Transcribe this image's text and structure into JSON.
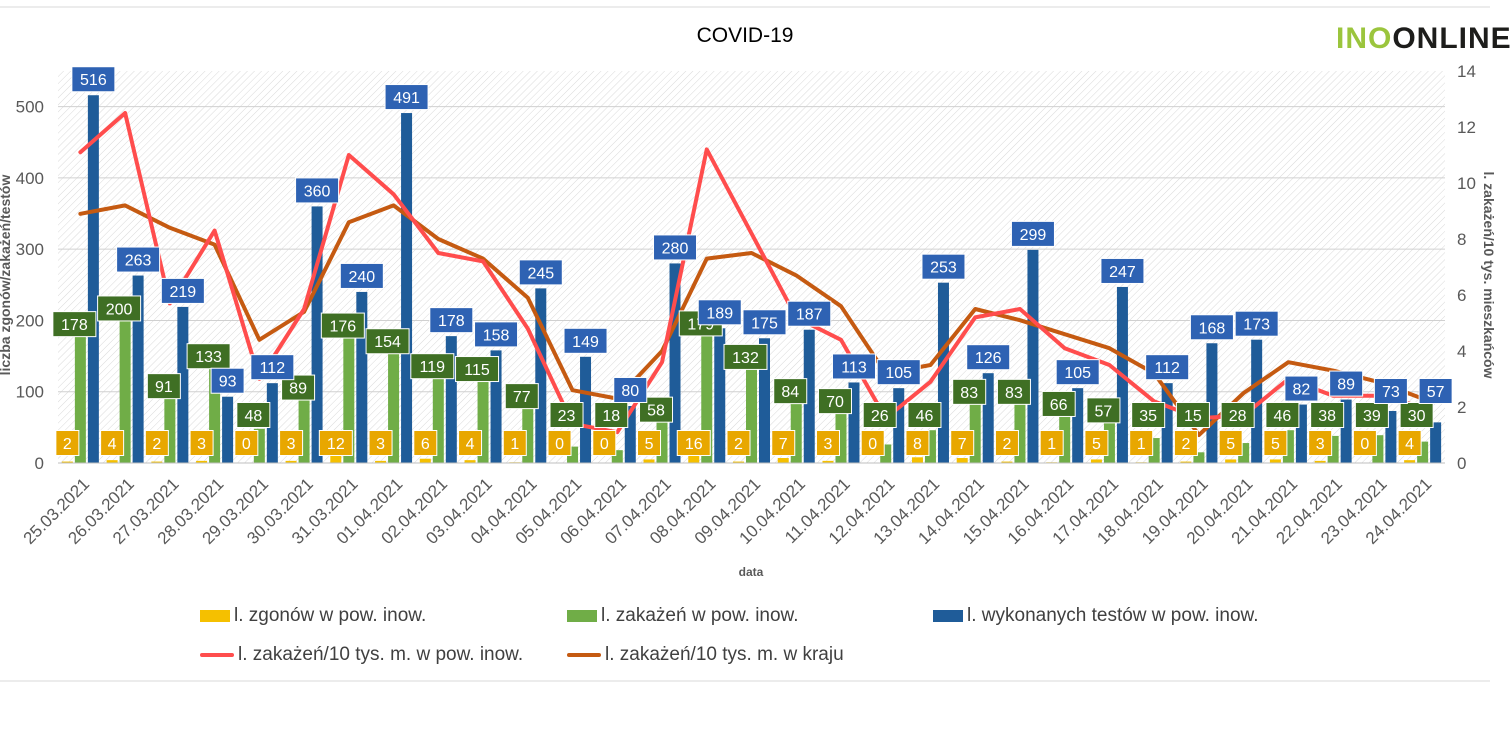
{
  "logo": {
    "part1": "INO",
    "part2": "ONLINE",
    "color1": "#9bc53d",
    "color2": "#1d1d1b"
  },
  "chart_data": {
    "type": "bar",
    "title": "COVID-19",
    "xlabel": "data",
    "ylabel_left": "liczba zgonów/zakażeń/testów",
    "ylabel_right": "l. zakażeń/10 tys. mieszkańców",
    "ylim_left": [
      0,
      550
    ],
    "ylim_right": [
      0,
      14
    ],
    "yticks_left": [
      0,
      100,
      200,
      300,
      400,
      500
    ],
    "yticks_right": [
      0,
      2,
      4,
      6,
      8,
      10,
      12,
      14
    ],
    "categories": [
      "25.03.2021",
      "26.03.2021",
      "27.03.2021",
      "28.03.2021",
      "29.03.2021",
      "30.03.2021",
      "31.03.2021",
      "01.04.2021",
      "02.04.2021",
      "03.04.2021",
      "04.04.2021",
      "05.04.2021",
      "06.04.2021",
      "07.04.2021",
      "08.04.2021",
      "09.04.2021",
      "10.04.2021",
      "11.04.2021",
      "12.04.2021",
      "13.04.2021",
      "14.04.2021",
      "15.04.2021",
      "16.04.2021",
      "17.04.2021",
      "18.04.2021",
      "19.04.2021",
      "20.04.2021",
      "21.04.2021",
      "22.04.2021",
      "23.04.2021",
      "24.04.2021"
    ],
    "series": [
      {
        "name": "l. zgonów w pow. inow.",
        "kind": "bar",
        "axis": "left",
        "color": "#f5c000",
        "label_bg": "#e8a700",
        "values": [
          2,
          4,
          2,
          3,
          0,
          3,
          12,
          3,
          6,
          4,
          1,
          0,
          0,
          5,
          16,
          2,
          7,
          3,
          0,
          8,
          7,
          2,
          1,
          5,
          1,
          2,
          5,
          5,
          3,
          0,
          4
        ]
      },
      {
        "name": "l. zakażeń w pow. inow.",
        "kind": "bar",
        "axis": "left",
        "color": "#70ad47",
        "label_bg": "#3f6f24",
        "values": [
          178,
          200,
          91,
          133,
          48,
          89,
          176,
          154,
          119,
          115,
          77,
          23,
          18,
          58,
          179,
          132,
          84,
          70,
          26,
          46,
          83,
          83,
          66,
          57,
          35,
          15,
          28,
          46,
          38,
          39,
          30
        ]
      },
      {
        "name": "l. wykonanych testów w pow. inow.",
        "kind": "bar",
        "axis": "left",
        "color": "#1f5c99",
        "label_bg": "#2e62b3",
        "values": [
          516,
          263,
          219,
          93,
          112,
          360,
          240,
          491,
          178,
          158,
          245,
          149,
          80,
          280,
          189,
          175,
          187,
          113,
          105,
          253,
          126,
          299,
          105,
          247,
          112,
          168,
          173,
          82,
          89,
          73,
          57
        ]
      },
      {
        "name": "l. zakażeń/10 tys. m. w pow. inow.",
        "kind": "line",
        "axis": "right",
        "color": "#ff4d4d",
        "values": [
          11.1,
          12.5,
          5.7,
          8.3,
          3.0,
          5.5,
          11.0,
          9.6,
          7.5,
          7.2,
          4.8,
          1.4,
          1.1,
          3.6,
          11.2,
          8.2,
          5.2,
          4.4,
          1.6,
          2.9,
          5.2,
          5.5,
          4.1,
          3.5,
          2.2,
          1.6,
          1.7,
          3.0,
          2.4,
          2.4,
          2.0
        ]
      },
      {
        "name": "l. zakażeń/10 tys. m. w kraju",
        "kind": "line",
        "axis": "right",
        "color": "#c55a11",
        "values": [
          8.9,
          9.2,
          8.4,
          7.8,
          4.4,
          5.4,
          8.6,
          9.2,
          8.0,
          7.3,
          5.9,
          2.6,
          2.3,
          4.0,
          7.3,
          7.5,
          6.7,
          5.6,
          3.2,
          3.5,
          5.5,
          5.1,
          4.6,
          4.1,
          3.2,
          1.0,
          2.5,
          3.6,
          3.3,
          2.9,
          2.3
        ]
      }
    ],
    "grid": true,
    "legend_position": "bottom"
  }
}
